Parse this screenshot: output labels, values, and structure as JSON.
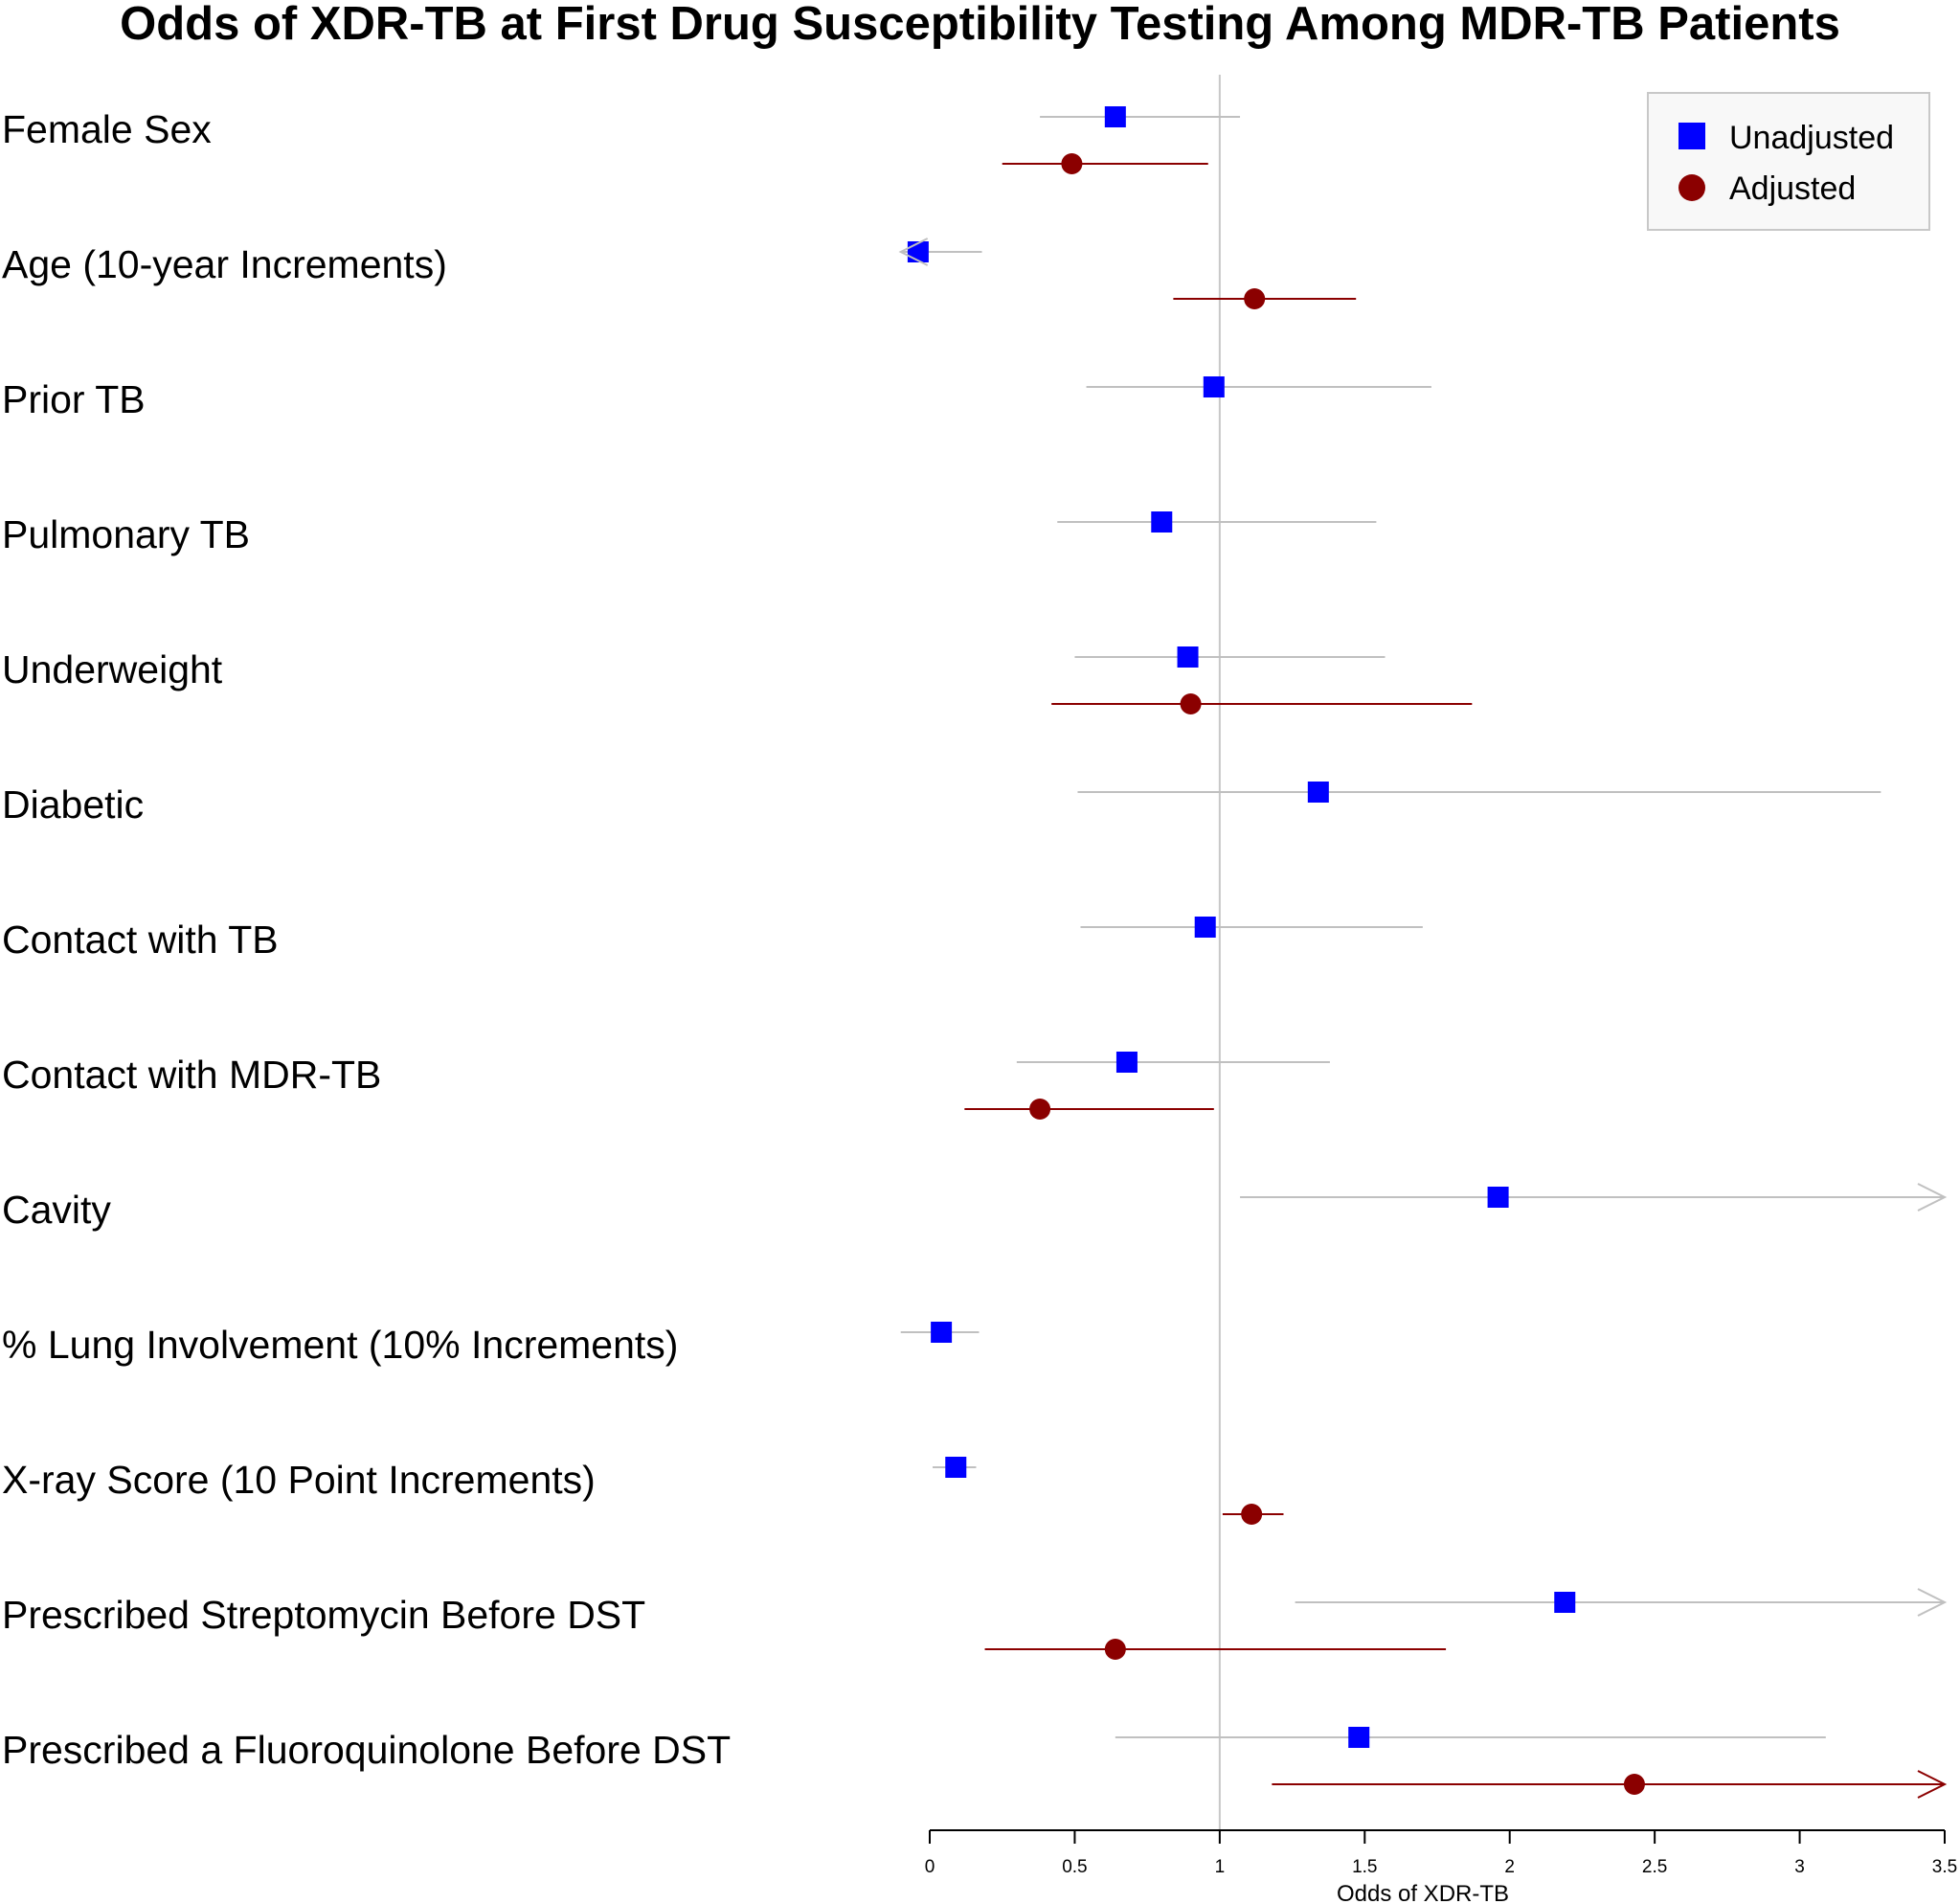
{
  "chart_data": {
    "type": "forest",
    "title": "Odds of XDR-TB at First Drug Susceptibility Testing Among MDR-TB Patients",
    "xlabel": "Odds of XDR-TB",
    "xlim": [
      0,
      3.5
    ],
    "xticks": [
      "0",
      "0.5",
      "1",
      "1.5",
      "2",
      "2.5",
      "3",
      "3.5"
    ],
    "reference_line": 1,
    "legend": {
      "position": "top-right",
      "items": [
        {
          "name": "Unadjusted",
          "marker": "square",
          "color": "#0000ff",
          "line_color": "#c0c0c0"
        },
        {
          "name": "Adjusted",
          "marker": "circle",
          "color": "#8b0000",
          "line_color": "#8b0000"
        }
      ]
    },
    "rows": [
      {
        "label": "Female Sex",
        "unadjusted": {
          "estimate": 0.64,
          "lower": 0.38,
          "upper": 1.07,
          "arrow_left": false,
          "arrow_right": false
        },
        "adjusted": {
          "estimate": 0.49,
          "lower": 0.25,
          "upper": 0.96,
          "arrow_left": false,
          "arrow_right": false
        }
      },
      {
        "label": "Age (10-year Increments)",
        "unadjusted": {
          "estimate": -0.04,
          "lower": -0.1,
          "upper": 0.18,
          "arrow_left": true,
          "arrow_right": false
        },
        "adjusted": {
          "estimate": 1.12,
          "lower": 0.84,
          "upper": 1.47,
          "arrow_left": false,
          "arrow_right": false
        }
      },
      {
        "label": "Prior TB",
        "unadjusted": {
          "estimate": 0.98,
          "lower": 0.54,
          "upper": 1.73,
          "arrow_left": false,
          "arrow_right": false
        },
        "adjusted": null
      },
      {
        "label": "Pulmonary TB",
        "unadjusted": {
          "estimate": 0.8,
          "lower": 0.44,
          "upper": 1.54,
          "arrow_left": false,
          "arrow_right": false
        },
        "adjusted": null
      },
      {
        "label": "Underweight",
        "unadjusted": {
          "estimate": 0.89,
          "lower": 0.5,
          "upper": 1.57,
          "arrow_left": false,
          "arrow_right": false
        },
        "adjusted": {
          "estimate": 0.9,
          "lower": 0.42,
          "upper": 1.87,
          "arrow_left": false,
          "arrow_right": false
        }
      },
      {
        "label": "Diabetic",
        "unadjusted": {
          "estimate": 1.34,
          "lower": 0.51,
          "upper": 3.28,
          "arrow_left": false,
          "arrow_right": false
        },
        "adjusted": null
      },
      {
        "label": "Contact with TB",
        "unadjusted": {
          "estimate": 0.95,
          "lower": 0.52,
          "upper": 1.7,
          "arrow_left": false,
          "arrow_right": false
        },
        "adjusted": null
      },
      {
        "label": "Contact with MDR-TB",
        "unadjusted": {
          "estimate": 0.68,
          "lower": 0.3,
          "upper": 1.38,
          "arrow_left": false,
          "arrow_right": false
        },
        "adjusted": {
          "estimate": 0.38,
          "lower": 0.12,
          "upper": 0.98,
          "arrow_left": false,
          "arrow_right": false
        }
      },
      {
        "label": "Cavity",
        "unadjusted": {
          "estimate": 1.96,
          "lower": 1.07,
          "upper": 3.5,
          "arrow_left": false,
          "arrow_right": true
        },
        "adjusted": null
      },
      {
        "label": "% Lung Involvement (10% Increments)",
        "unadjusted": {
          "estimate": 0.04,
          "lower": -0.1,
          "upper": 0.17,
          "arrow_left": false,
          "arrow_right": false
        },
        "adjusted": null
      },
      {
        "label": "X-ray Score (10 Point Increments)",
        "unadjusted": {
          "estimate": 0.09,
          "lower": 0.01,
          "upper": 0.16,
          "arrow_left": false,
          "arrow_right": false
        },
        "adjusted": {
          "estimate": 1.11,
          "lower": 1.01,
          "upper": 1.22,
          "arrow_left": false,
          "arrow_right": false
        }
      },
      {
        "label": "Prescribed Streptomycin Before DST",
        "unadjusted": {
          "estimate": 2.19,
          "lower": 1.26,
          "upper": 3.5,
          "arrow_left": false,
          "arrow_right": true
        },
        "adjusted": {
          "estimate": 0.64,
          "lower": 0.19,
          "upper": 1.78,
          "arrow_left": false,
          "arrow_right": false
        }
      },
      {
        "label": "Prescribed a Fluoroquinolone Before DST",
        "unadjusted": {
          "estimate": 1.48,
          "lower": 0.64,
          "upper": 3.09,
          "arrow_left": false,
          "arrow_right": false
        },
        "adjusted": {
          "estimate": 2.43,
          "lower": 1.18,
          "upper": 3.5,
          "arrow_left": false,
          "arrow_right": true
        }
      }
    ]
  }
}
